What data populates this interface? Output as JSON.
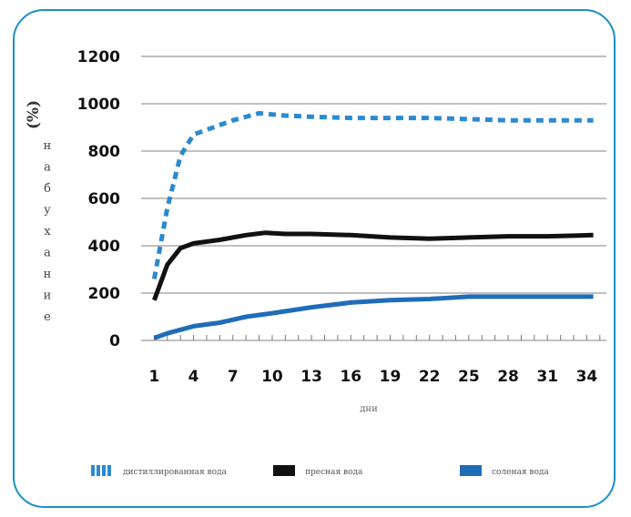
{
  "chart_data": {
    "type": "line",
    "title": "",
    "ylabel": "набухание",
    "ylabel_unit": "(%)",
    "xlabel": "дни",
    "ylim": [
      0,
      1200
    ],
    "xlim": [
      0,
      35.5
    ],
    "yticks": [
      0,
      200,
      400,
      600,
      800,
      1000,
      1200
    ],
    "xticks": [
      1,
      4,
      7,
      10,
      13,
      16,
      19,
      22,
      25,
      28,
      31,
      34
    ],
    "grid": "horizontal",
    "legend_position": "bottom",
    "series": [
      {
        "name": "дистиллированная вода",
        "color": "#2b8ad0",
        "style": "dotted",
        "points": [
          [
            1,
            260
          ],
          [
            2,
            560
          ],
          [
            3,
            780
          ],
          [
            4,
            870
          ],
          [
            5,
            890
          ],
          [
            7,
            930
          ],
          [
            9,
            960
          ],
          [
            11,
            950
          ],
          [
            13,
            945
          ],
          [
            16,
            940
          ],
          [
            19,
            940
          ],
          [
            22,
            940
          ],
          [
            25,
            935
          ],
          [
            28,
            930
          ],
          [
            31,
            930
          ],
          [
            34.5,
            930
          ]
        ]
      },
      {
        "name": "пресная вода",
        "color": "#111111",
        "style": "solid",
        "points": [
          [
            1,
            170
          ],
          [
            2,
            320
          ],
          [
            3,
            390
          ],
          [
            4,
            410
          ],
          [
            6,
            425
          ],
          [
            8,
            445
          ],
          [
            9.5,
            455
          ],
          [
            11,
            450
          ],
          [
            13,
            450
          ],
          [
            16,
            445
          ],
          [
            19,
            435
          ],
          [
            22,
            430
          ],
          [
            25,
            435
          ],
          [
            28,
            440
          ],
          [
            31,
            440
          ],
          [
            34.5,
            445
          ]
        ]
      },
      {
        "name": "соленая вода",
        "color": "#1f6db8",
        "style": "solid",
        "points": [
          [
            1,
            10
          ],
          [
            2,
            30
          ],
          [
            3,
            45
          ],
          [
            4,
            60
          ],
          [
            6,
            75
          ],
          [
            8,
            100
          ],
          [
            10,
            115
          ],
          [
            13,
            140
          ],
          [
            16,
            160
          ],
          [
            19,
            170
          ],
          [
            22,
            175
          ],
          [
            25,
            185
          ],
          [
            28,
            185
          ],
          [
            31,
            185
          ],
          [
            34.5,
            185
          ]
        ]
      }
    ]
  }
}
